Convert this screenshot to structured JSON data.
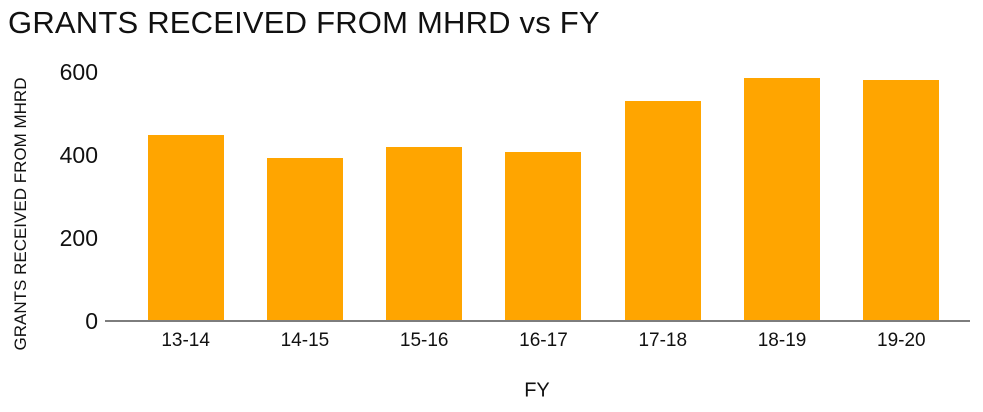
{
  "colors": {
    "bar": "#FFA500",
    "axis_line": "#7D7D7D",
    "text": "#111111"
  },
  "chart_data": {
    "type": "bar",
    "title": "GRANTS RECEIVED FROM MHRD vs FY",
    "xlabel": "FY",
    "ylabel": "GRANTS RECEIVED FROM MHRD",
    "categories": [
      "13-14",
      "14-15",
      "15-16",
      "16-17",
      "17-18",
      "18-19",
      "19-20"
    ],
    "values": [
      445,
      390,
      418,
      405,
      527,
      583,
      578
    ],
    "yticks": [
      0,
      200,
      400,
      600
    ],
    "ylim": [
      0,
      600
    ],
    "grid": false,
    "legend": null,
    "bar_color": "#FFA500"
  }
}
